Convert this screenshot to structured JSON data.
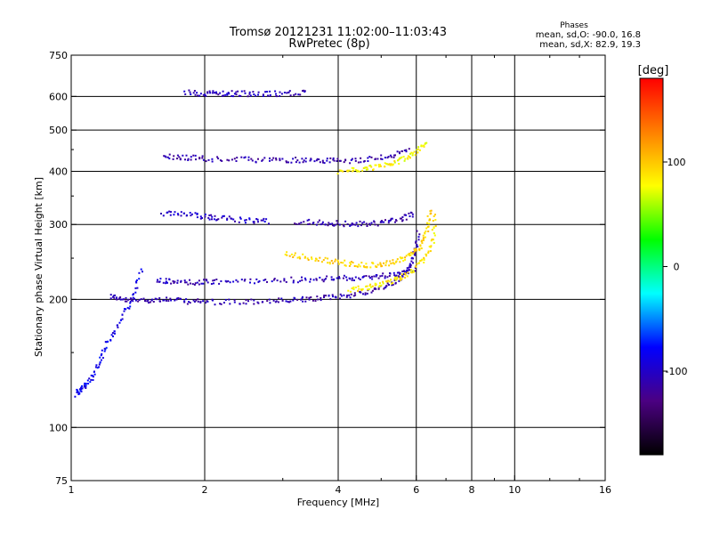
{
  "chart_data": {
    "type": "scatter",
    "title": "Tromsø 20121231 11:02:00–11:03:43",
    "subtitle": "RwPretec (8p)",
    "xlabel": "Frequency [MHz]",
    "ylabel": "Stationary phase Virtual Height [km]",
    "xscale": "log",
    "yscale": "log",
    "xlim": [
      1,
      16
    ],
    "ylim": [
      75,
      750
    ],
    "x_ticks": [
      1,
      2,
      4,
      6,
      8,
      10,
      16
    ],
    "y_ticks": [
      75,
      100,
      200,
      300,
      400,
      500,
      600,
      750
    ],
    "grid": true,
    "stats_title": "Phases",
    "stats_lines": [
      "mean, sd,O:  -90.0, 16.8",
      "mean, sd,X:  82.9, 19.3"
    ],
    "colorbar": {
      "label": "[deg]",
      "range": [
        -180,
        180
      ],
      "ticks": [
        100,
        0,
        -100
      ],
      "colors": [
        "#ff0000",
        "#ff8000",
        "#ffff00",
        "#00ff00",
        "#00ffff",
        "#0000ff",
        "#4b0082",
        "#000000"
      ]
    },
    "traces": [
      {
        "x": [
          1.22,
          1.3,
          1.45,
          1.6,
          1.8,
          2.0,
          2.4,
          2.8,
          3.2,
          3.6,
          4.0,
          4.5,
          5.0,
          5.4,
          5.7,
          5.9,
          6.05
        ],
        "y": [
          205,
          200,
          200,
          201,
          199,
          198,
          198,
          199,
          200,
          202,
          204,
          208,
          214,
          222,
          235,
          255,
          290
        ],
        "phase": -110
      },
      {
        "x": [
          1.55,
          1.7,
          1.9,
          2.1,
          2.5,
          3.0,
          3.5,
          4.0,
          4.5,
          5.0,
          5.5,
          6.0
        ],
        "y": [
          222,
          221,
          220,
          221,
          222,
          223,
          224,
          225,
          226,
          228,
          232,
          238
        ],
        "phase": -105
      },
      {
        "x": [
          1.6,
          1.8,
          2.0,
          2.2,
          2.5,
          2.8
        ],
        "y": [
          320,
          318,
          314,
          311,
          308,
          307
        ],
        "phase": -100
      },
      {
        "x": [
          3.2,
          3.6,
          4.0,
          4.5,
          5.0,
          5.5,
          5.9
        ],
        "y": [
          306,
          304,
          303,
          302,
          304,
          310,
          320
        ],
        "phase": -110
      },
      {
        "x": [
          1.6,
          1.8,
          2.0,
          2.4,
          2.8,
          3.2,
          3.6,
          4.0,
          4.6,
          5.2,
          5.8
        ],
        "y": [
          436,
          433,
          430,
          428,
          428,
          427,
          426,
          425,
          428,
          436,
          450
        ],
        "phase": -110
      },
      {
        "x": [
          1.8,
          2.0,
          2.2,
          2.4,
          2.7,
          3.0,
          3.4
        ],
        "y": [
          615,
          613,
          612,
          612,
          611,
          612,
          615
        ],
        "phase": -105
      },
      {
        "x": [
          1.02,
          1.05,
          1.1,
          1.15,
          1.2,
          1.28,
          1.36,
          1.44
        ],
        "y": [
          120,
          124,
          130,
          142,
          160,
          178,
          200,
          240
        ],
        "phase": -85
      },
      {
        "x": [
          3.0,
          3.4,
          3.8,
          4.2,
          4.6,
          5.0,
          5.4,
          5.8,
          6.1,
          6.3,
          6.45
        ],
        "y": [
          258,
          252,
          247,
          244,
          242,
          243,
          247,
          255,
          268,
          290,
          330
        ],
        "phase": 95
      },
      {
        "x": [
          4.2,
          4.6,
          5.0,
          5.4,
          5.8,
          6.2,
          6.5,
          6.6
        ],
        "y": [
          212,
          214,
          218,
          224,
          232,
          248,
          272,
          320
        ],
        "phase": 85
      },
      {
        "x": [
          4.0,
          4.4,
          4.8,
          5.2,
          5.6,
          6.0,
          6.3
        ],
        "y": [
          402,
          405,
          410,
          418,
          430,
          448,
          470
        ],
        "phase": 80
      }
    ]
  }
}
